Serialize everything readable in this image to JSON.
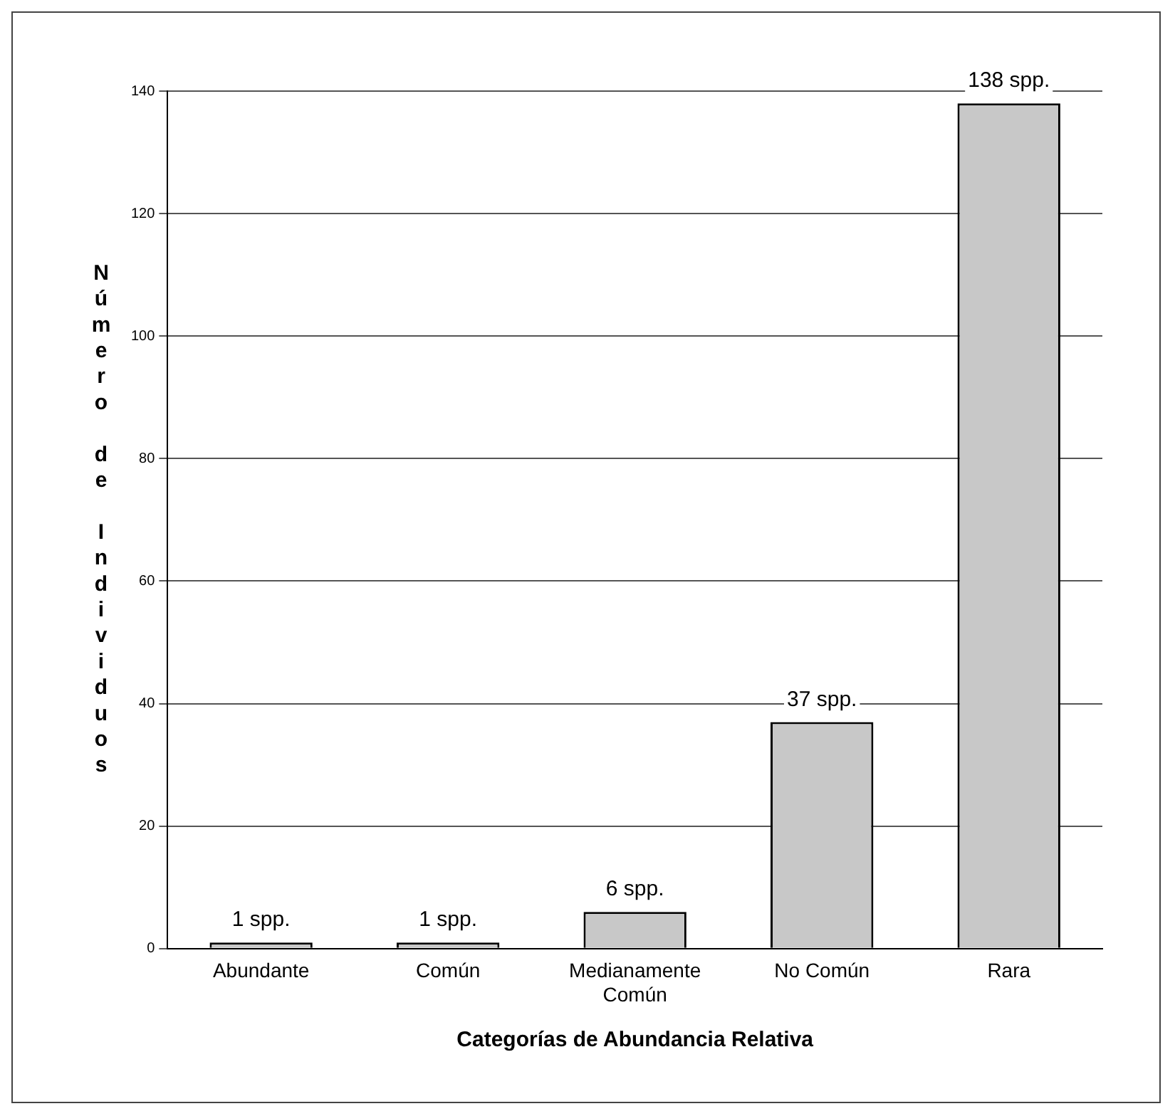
{
  "chart_data": {
    "type": "bar",
    "xlabel": "Categorías de Abundancia Relativa",
    "ylabel": "Número de Individuos",
    "categories": [
      "Abundante",
      "Común",
      "Medianamente Común",
      "No Común",
      "Rara"
    ],
    "values": [
      1,
      1,
      6,
      37,
      138
    ],
    "color": "#c8c8c8",
    "value_labels": [
      "1 spp.",
      "1 spp.",
      "6 spp.",
      "37 spp.",
      "138 spp."
    ],
    "ylim": [
      0,
      140
    ],
    "yticks": [
      0,
      20,
      40,
      60,
      80,
      100,
      120,
      140
    ],
    "grid": "y"
  }
}
